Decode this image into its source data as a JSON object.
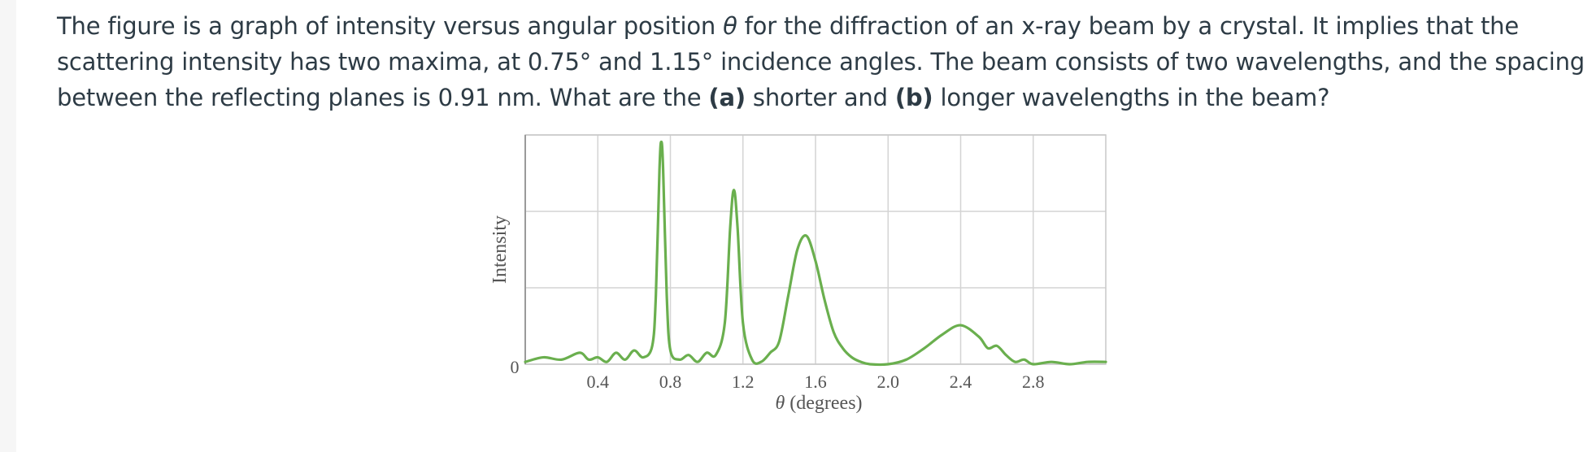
{
  "question": {
    "part1": "The figure is a graph of intensity versus angular position ",
    "theta": "θ",
    "part2": " for the diffraction of an x-ray beam by a crystal. It implies that the scattering intensity has two maxima, at 0.75° and 1.15° incidence angles. The beam consists of two wavelengths, and the spacing between the reflecting planes is 0.91 nm. What are the ",
    "a_label": "(a)",
    "part3": " shorter and ",
    "b_label": "(b)",
    "part4": " longer wavelengths in the beam?"
  },
  "chart_data": {
    "type": "line",
    "ylabel": "Intensity",
    "xlabel": "θ (degrees)",
    "y_zero_label": "0",
    "xlim": [
      0.0,
      3.2
    ],
    "ylim": [
      0,
      1.0
    ],
    "x_ticks": [
      0.4,
      0.8,
      1.2,
      1.6,
      2.0,
      2.4,
      2.8
    ],
    "x_tick_labels": [
      "0.4",
      "0.8",
      "1.2",
      "1.6",
      "2.0",
      "2.4",
      "2.8"
    ],
    "grid": true,
    "line_color": "#6aaf4e",
    "series": [
      {
        "x": [
          0.0,
          0.1,
          0.2,
          0.3,
          0.35,
          0.4,
          0.45,
          0.5,
          0.55,
          0.6,
          0.65,
          0.7,
          0.72,
          0.74,
          0.75,
          0.76,
          0.78,
          0.8,
          0.85,
          0.9,
          0.95,
          1.0,
          1.05,
          1.1,
          1.13,
          1.15,
          1.17,
          1.2,
          1.25,
          1.3,
          1.35,
          1.4,
          1.45,
          1.5,
          1.55,
          1.6,
          1.65,
          1.7,
          1.75,
          1.8,
          1.85,
          1.9,
          2.0,
          2.1,
          2.2,
          2.3,
          2.4,
          2.5,
          2.55,
          2.6,
          2.65,
          2.7,
          2.75,
          2.8,
          2.9,
          3.0,
          3.1,
          3.2
        ],
        "y": [
          0.01,
          0.03,
          0.02,
          0.05,
          0.02,
          0.03,
          0.01,
          0.05,
          0.02,
          0.06,
          0.03,
          0.08,
          0.3,
          0.85,
          0.97,
          0.85,
          0.3,
          0.06,
          0.02,
          0.04,
          0.01,
          0.05,
          0.04,
          0.18,
          0.6,
          0.76,
          0.6,
          0.18,
          0.02,
          0.01,
          0.05,
          0.1,
          0.3,
          0.5,
          0.56,
          0.45,
          0.28,
          0.14,
          0.07,
          0.03,
          0.01,
          0.0,
          0.0,
          0.02,
          0.07,
          0.13,
          0.17,
          0.12,
          0.07,
          0.08,
          0.04,
          0.01,
          0.02,
          0.0,
          0.01,
          0.0,
          0.01,
          0.01
        ]
      }
    ]
  }
}
